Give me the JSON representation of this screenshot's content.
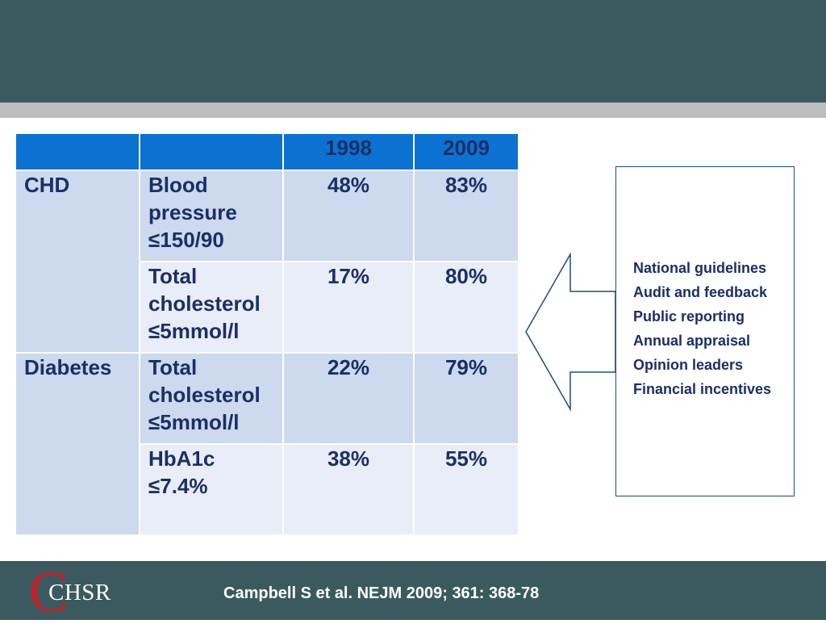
{
  "table": {
    "headers": [
      "",
      "",
      "1998",
      "2009"
    ],
    "rows": [
      {
        "group": "CHD",
        "measure": "Blood pressure ≤150/90",
        "v1998": "48%",
        "v2009": "83%"
      },
      {
        "group": "",
        "measure": "Total cholesterol ≤5mmol/l",
        "v1998": "17%",
        "v2009": "80%"
      },
      {
        "group": "Diabetes",
        "measure": "Total cholesterol ≤5mmol/l",
        "v1998": "22%",
        "v2009": "79%"
      },
      {
        "group": "",
        "measure": "HbA1c ≤7.4%",
        "v1998": "38%",
        "v2009": "55%"
      }
    ]
  },
  "interventions": [
    "National guidelines",
    "Audit and feedback",
    "Public reporting",
    "Annual appraisal",
    "Opinion leaders",
    "Financial incentives"
  ],
  "footer": {
    "logo_letter": "C",
    "logo_text": "CHSR",
    "citation": "Campbell S et al. NEJM 2009; 361: 368-78"
  },
  "colors": {
    "band": "#3a5a5f",
    "header_blue": "#0b72d2",
    "row_dark": "#ccd9ee",
    "row_light": "#e8edf7",
    "text_navy": "#1b2f66",
    "logo_red": "#c0202a"
  }
}
